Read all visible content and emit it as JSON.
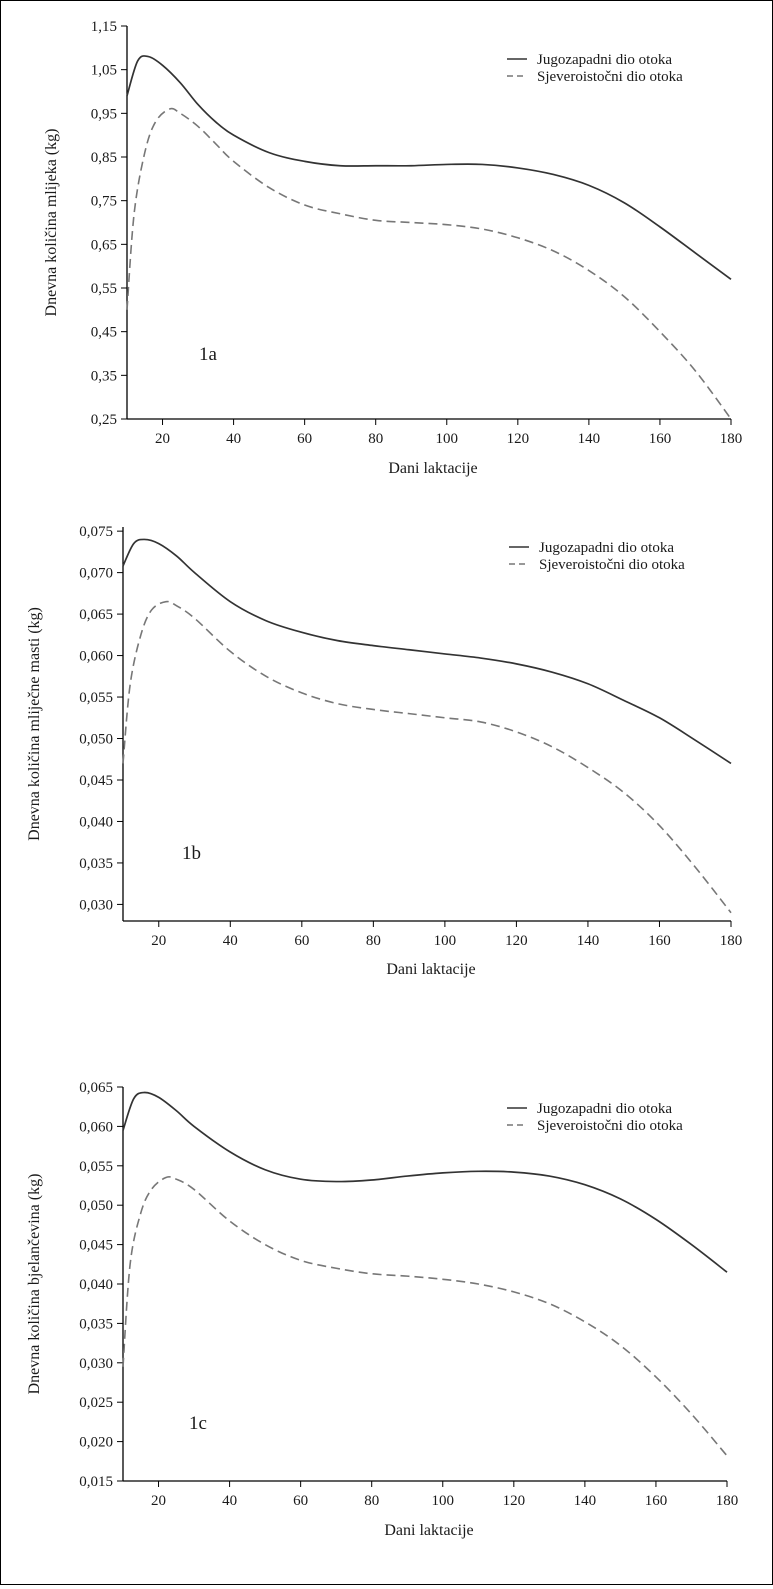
{
  "figure": {
    "colors": {
      "solid": "#333333",
      "dashed": "#777777",
      "axis": "#000000"
    }
  },
  "chart_data": [
    {
      "type": "line",
      "panel_label": "1a",
      "xlabel": "Dani laktacije",
      "ylabel": "Dnevna količina mlijeka (kg)",
      "xlim": [
        10,
        180
      ],
      "ylim": [
        0.25,
        1.15
      ],
      "xticks": [
        20,
        40,
        60,
        80,
        100,
        120,
        140,
        160,
        180
      ],
      "xtick_labels": [
        "20",
        "40",
        "60",
        "80",
        "100",
        "120",
        "140",
        "160",
        "180"
      ],
      "yticks": [
        0.25,
        0.35,
        0.45,
        0.55,
        0.65,
        0.75,
        0.85,
        0.95,
        1.05,
        1.15
      ],
      "ytick_labels": [
        "0,25",
        "0,35",
        "0,45",
        "0,55",
        "0,65",
        "0,75",
        "0,85",
        "0,95",
        "1,05",
        "1,15"
      ],
      "legend_position": "top-right",
      "series": [
        {
          "name": "Jugozapadni dio otoka",
          "style": "solid",
          "x": [
            10,
            13,
            16,
            20,
            25,
            30,
            35,
            40,
            50,
            60,
            70,
            80,
            90,
            100,
            110,
            120,
            130,
            140,
            150,
            160,
            170,
            180
          ],
          "y": [
            0.99,
            1.07,
            1.08,
            1.06,
            1.02,
            0.97,
            0.93,
            0.9,
            0.86,
            0.84,
            0.83,
            0.83,
            0.83,
            0.833,
            0.833,
            0.825,
            0.81,
            0.785,
            0.745,
            0.69,
            0.63,
            0.57
          ]
        },
        {
          "name": "Sjeveroistočni dio otoka",
          "style": "dashed",
          "x": [
            10,
            12,
            15,
            18,
            22,
            25,
            30,
            35,
            40,
            50,
            60,
            70,
            80,
            90,
            100,
            110,
            120,
            130,
            140,
            150,
            160,
            170,
            180
          ],
          "y": [
            0.5,
            0.72,
            0.86,
            0.93,
            0.96,
            0.95,
            0.92,
            0.88,
            0.84,
            0.78,
            0.74,
            0.72,
            0.705,
            0.7,
            0.695,
            0.685,
            0.665,
            0.635,
            0.59,
            0.53,
            0.45,
            0.36,
            0.25
          ]
        }
      ]
    },
    {
      "type": "line",
      "panel_label": "1b",
      "xlabel": "Dani laktacije",
      "ylabel": "Dnevna količina mliječne masti (kg)",
      "xlim": [
        10,
        180
      ],
      "ylim": [
        0.028,
        0.0755
      ],
      "xticks": [
        20,
        40,
        60,
        80,
        100,
        120,
        140,
        160,
        180
      ],
      "xtick_labels": [
        "20",
        "40",
        "60",
        "80",
        "100",
        "120",
        "140",
        "160",
        "180"
      ],
      "yticks": [
        0.03,
        0.035,
        0.04,
        0.045,
        0.05,
        0.055,
        0.06,
        0.065,
        0.07,
        0.075
      ],
      "ytick_labels": [
        "0,030",
        "0,035",
        "0,040",
        "0,045",
        "0,050",
        "0,055",
        "0,060",
        "0,065",
        "0,070",
        "0,075"
      ],
      "legend_position": "top-right",
      "series": [
        {
          "name": "Jugozapadni dio otoka",
          "style": "solid",
          "x": [
            10,
            13,
            16,
            20,
            25,
            30,
            40,
            50,
            60,
            70,
            80,
            90,
            100,
            110,
            120,
            130,
            140,
            150,
            160,
            170,
            180
          ],
          "y": [
            0.0708,
            0.0735,
            0.074,
            0.0735,
            0.072,
            0.07,
            0.0665,
            0.0642,
            0.0628,
            0.0618,
            0.0612,
            0.0607,
            0.0602,
            0.0597,
            0.059,
            0.058,
            0.0566,
            0.0546,
            0.0525,
            0.0498,
            0.047
          ]
        },
        {
          "name": "Sjeveroistočni  dio otoka",
          "style": "dashed",
          "x": [
            10,
            12,
            15,
            18,
            22,
            25,
            30,
            40,
            50,
            60,
            70,
            80,
            90,
            100,
            110,
            120,
            130,
            140,
            150,
            160,
            170,
            180
          ],
          "y": [
            0.047,
            0.0565,
            0.0625,
            0.0655,
            0.0665,
            0.066,
            0.0645,
            0.0605,
            0.0575,
            0.0555,
            0.0542,
            0.0535,
            0.053,
            0.0525,
            0.052,
            0.0508,
            0.049,
            0.0465,
            0.0435,
            0.0395,
            0.0345,
            0.029
          ]
        }
      ]
    },
    {
      "type": "line",
      "panel_label": "1c",
      "xlabel": "Dani laktacije",
      "ylabel": "Dnevna količina bjelančevina (kg)",
      "xlim": [
        10,
        180
      ],
      "ylim": [
        0.015,
        0.065
      ],
      "xticks": [
        20,
        40,
        60,
        80,
        100,
        120,
        140,
        160,
        180
      ],
      "xtick_labels": [
        "20",
        "40",
        "60",
        "80",
        "100",
        "120",
        "140",
        "160",
        "180"
      ],
      "yticks": [
        0.015,
        0.02,
        0.025,
        0.03,
        0.035,
        0.04,
        0.045,
        0.05,
        0.055,
        0.06,
        0.065
      ],
      "ytick_labels": [
        "0,015",
        "0,020",
        "0,025",
        "0,030",
        "0,035",
        "0,040",
        "0,045",
        "0,050",
        "0,055",
        "0,060",
        "0,065"
      ],
      "legend_position": "top-right",
      "series": [
        {
          "name": "Jugozapadni dio otoka",
          "style": "solid",
          "x": [
            10,
            13,
            16,
            20,
            25,
            30,
            40,
            50,
            60,
            70,
            80,
            90,
            100,
            110,
            120,
            130,
            140,
            150,
            160,
            170,
            180
          ],
          "y": [
            0.0595,
            0.0635,
            0.0643,
            0.0637,
            0.062,
            0.06,
            0.0568,
            0.0545,
            0.0533,
            0.053,
            0.0532,
            0.0537,
            0.0541,
            0.0543,
            0.0542,
            0.0537,
            0.0526,
            0.0508,
            0.0482,
            0.045,
            0.0415
          ]
        },
        {
          "name": "Sjeveroistočni dio otoka",
          "style": "dashed",
          "x": [
            10,
            12,
            15,
            18,
            22,
            25,
            30,
            40,
            50,
            60,
            70,
            80,
            90,
            100,
            110,
            120,
            130,
            140,
            150,
            160,
            170,
            180
          ],
          "y": [
            0.0295,
            0.0425,
            0.049,
            0.052,
            0.0535,
            0.0533,
            0.052,
            0.048,
            0.045,
            0.043,
            0.042,
            0.0413,
            0.041,
            0.0406,
            0.04,
            0.039,
            0.0375,
            0.0352,
            0.0322,
            0.0282,
            0.0235,
            0.0182
          ]
        }
      ]
    }
  ]
}
